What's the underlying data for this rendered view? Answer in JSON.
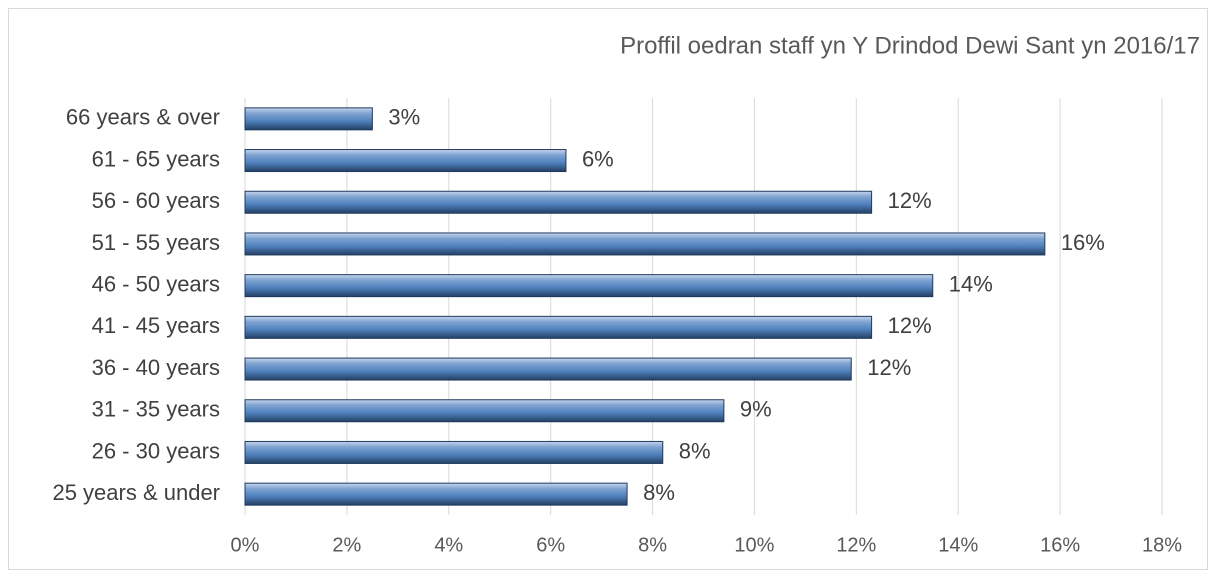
{
  "chart_data": {
    "type": "barh",
    "title": "Proffil oedran staff yn Y Drindod Dewi Sant yn 2016/17",
    "categories": [
      "66 years & over",
      "61 - 65 years",
      "56 - 60 years",
      "51 - 55 years",
      "46 - 50 years",
      "41 - 45 years",
      "36 - 40 years",
      "31 - 35 years",
      "26 - 30 years",
      "25 years & under"
    ],
    "values": [
      2.5,
      6.3,
      12.3,
      15.7,
      13.5,
      12.3,
      11.9,
      9.4,
      8.2,
      7.5
    ],
    "value_labels": [
      "3%",
      "6%",
      "12%",
      "16%",
      "14%",
      "12%",
      "12%",
      "9%",
      "8%",
      "8%"
    ],
    "color": "#4f81bd",
    "xlim": [
      0,
      18
    ],
    "xticks": [
      {
        "value": 0,
        "label": "0%"
      },
      {
        "value": 2,
        "label": "2%"
      },
      {
        "value": 4,
        "label": "4%"
      },
      {
        "value": 6,
        "label": "6%"
      },
      {
        "value": 8,
        "label": "8%"
      },
      {
        "value": 10,
        "label": "10%"
      },
      {
        "value": 12,
        "label": "12%"
      },
      {
        "value": 14,
        "label": "14%"
      },
      {
        "value": 16,
        "label": "16%"
      },
      {
        "value": 18,
        "label": "18%"
      }
    ],
    "grid": true
  }
}
